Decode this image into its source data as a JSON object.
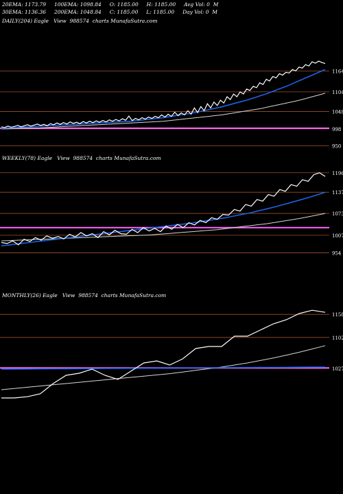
{
  "header": {
    "line1": "20EMA: 1173.79     100EMA: 1098.84     O: 1185.00     H: 1185.00     Avg Vol: 0  M",
    "line2": "30EMA: 1136.36     200EMA: 1048.84     C: 1185.00     L: 1185.00     Day Vol: 0  M",
    "line3": "DAILY(204) Eagle   View  988574  charts MunafaSutra.com"
  },
  "weekly_title": "WEEKLY(78) Eagle   View  988574  charts MunafaSutra.com",
  "monthly_title": "MONTHLY(26) Eagle   View  988574  charts MunafaSutra.com",
  "colors": {
    "background": "#000000",
    "price": "#ffffff",
    "ema_fast": "#1e63e6",
    "ema_slow": "#d8d8d8",
    "level_line": "#a0522d",
    "pink_line": "#ff66ff"
  },
  "chart_data": [
    {
      "type": "line",
      "title": "DAILY(204)",
      "ylim": [
        935,
        1200
      ],
      "level_labels": [
        1164,
        1104,
        1048,
        998,
        950
      ],
      "price": [
        1004,
        1002,
        1006,
        1003,
        1005,
        1008,
        1004,
        1007,
        1010,
        1006,
        1009,
        1012,
        1008,
        1011,
        1007,
        1013,
        1010,
        1015,
        1011,
        1016,
        1012,
        1018,
        1014,
        1017,
        1013,
        1019,
        1015,
        1020,
        1016,
        1021,
        1017,
        1022,
        1018,
        1024,
        1020,
        1025,
        1021,
        1027,
        1023,
        1035,
        1022,
        1028,
        1024,
        1030,
        1026,
        1032,
        1028,
        1034,
        1030,
        1038,
        1032,
        1040,
        1034,
        1046,
        1036,
        1044,
        1038,
        1050,
        1040,
        1058,
        1045,
        1062,
        1050,
        1070,
        1058,
        1075,
        1065,
        1080,
        1072,
        1090,
        1082,
        1098,
        1090,
        1104,
        1098,
        1112,
        1108,
        1120,
        1116,
        1130,
        1125,
        1140,
        1135,
        1148,
        1144,
        1156,
        1152,
        1160,
        1158,
        1168,
        1164,
        1175,
        1172,
        1182,
        1178,
        1190,
        1186,
        1192,
        1188,
        1185
      ],
      "ema_fast": [
        1000,
        1001,
        1002,
        1003,
        1004,
        1005,
        1006,
        1007,
        1008,
        1009,
        1010,
        1011,
        1012,
        1013,
        1014,
        1015,
        1016,
        1017,
        1018,
        1019,
        1020,
        1022,
        1024,
        1026,
        1028,
        1030,
        1033,
        1036,
        1039,
        1042,
        1045,
        1049,
        1053,
        1057,
        1061,
        1066,
        1071,
        1076,
        1081,
        1087,
        1093,
        1099,
        1106,
        1113,
        1120,
        1128,
        1136,
        1144,
        1152,
        1160,
        1168
      ],
      "ema_slow": [
        998,
        998.5,
        999,
        999.5,
        1000,
        1000.5,
        1001,
        1002,
        1003,
        1004,
        1005,
        1006,
        1007,
        1008,
        1009,
        1010,
        1011,
        1012,
        1013,
        1014,
        1015,
        1016,
        1017,
        1018,
        1019,
        1020,
        1022,
        1024,
        1026,
        1028,
        1030,
        1032,
        1034,
        1036,
        1038,
        1041,
        1044,
        1047,
        1050,
        1053,
        1056,
        1060,
        1064,
        1068,
        1072,
        1076,
        1080,
        1085,
        1090,
        1095,
        1100
      ]
    },
    {
      "type": "line",
      "title": "WEEKLY(78)",
      "ylim": [
        930,
        1210
      ],
      "level_labels": [
        1196,
        1137,
        1073,
        1007,
        954
      ],
      "price": [
        985,
        982,
        990,
        978,
        995,
        988,
        1000,
        992,
        1005,
        998,
        1003,
        996,
        1010,
        1002,
        1015,
        1005,
        1012,
        1000,
        1018,
        1008,
        1022,
        1012,
        1010,
        1025,
        1015,
        1030,
        1020,
        1028,
        1018,
        1035,
        1025,
        1040,
        1030,
        1045,
        1038,
        1052,
        1045,
        1060,
        1055,
        1070,
        1068,
        1085,
        1080,
        1100,
        1095,
        1115,
        1110,
        1130,
        1125,
        1145,
        1140,
        1160,
        1155,
        1175,
        1170,
        1190,
        1196,
        1185
      ],
      "ema_fast": [
        975,
        978,
        981,
        984,
        987,
        990,
        993,
        996,
        999,
        1002,
        1005,
        1008,
        1011,
        1014,
        1017,
        1020,
        1023,
        1026,
        1029,
        1032,
        1035,
        1038,
        1041,
        1044,
        1048,
        1052,
        1056,
        1060,
        1065,
        1070,
        1075,
        1081,
        1087,
        1093,
        1100,
        1107,
        1114,
        1121,
        1129,
        1137
      ],
      "ema_slow": [
        990,
        991,
        992,
        993,
        994,
        995,
        996,
        997,
        998,
        999,
        1000,
        1001,
        1002,
        1003,
        1004,
        1005,
        1006,
        1007,
        1008,
        1010,
        1012,
        1014,
        1016,
        1018,
        1020,
        1022,
        1024,
        1027,
        1030,
        1033,
        1036,
        1039,
        1042,
        1046,
        1050,
        1054,
        1058,
        1063,
        1068,
        1073
      ]
    },
    {
      "type": "line",
      "title": "MONTHLY(26)",
      "ylim": [
        930,
        1180
      ],
      "level_labels": [
        1158,
        1102,
        1027
      ],
      "price": [
        955,
        955,
        958,
        965,
        990,
        1010,
        1015,
        1025,
        1010,
        1000,
        1020,
        1040,
        1045,
        1035,
        1050,
        1075,
        1080,
        1080,
        1105,
        1105,
        1120,
        1135,
        1145,
        1160,
        1168,
        1163
      ],
      "ema_fast": [
        1025,
        1025.2,
        1025.4,
        1025.6,
        1025.8,
        1026,
        1026.2,
        1026.4,
        1026.6,
        1026.8,
        1027,
        1027.2,
        1027.4,
        1027.6,
        1027.8,
        1028,
        1028.2,
        1028.4,
        1028.6,
        1028.8,
        1029,
        1029.2,
        1029.4,
        1029.6,
        1029.8,
        1030
      ],
      "ema_slow": [
        975,
        978,
        981,
        984,
        987,
        990,
        993,
        996,
        999,
        1002,
        1005,
        1008,
        1011,
        1014,
        1018,
        1022,
        1026,
        1030,
        1035,
        1040,
        1046,
        1052,
        1059,
        1066,
        1074,
        1082
      ]
    }
  ]
}
